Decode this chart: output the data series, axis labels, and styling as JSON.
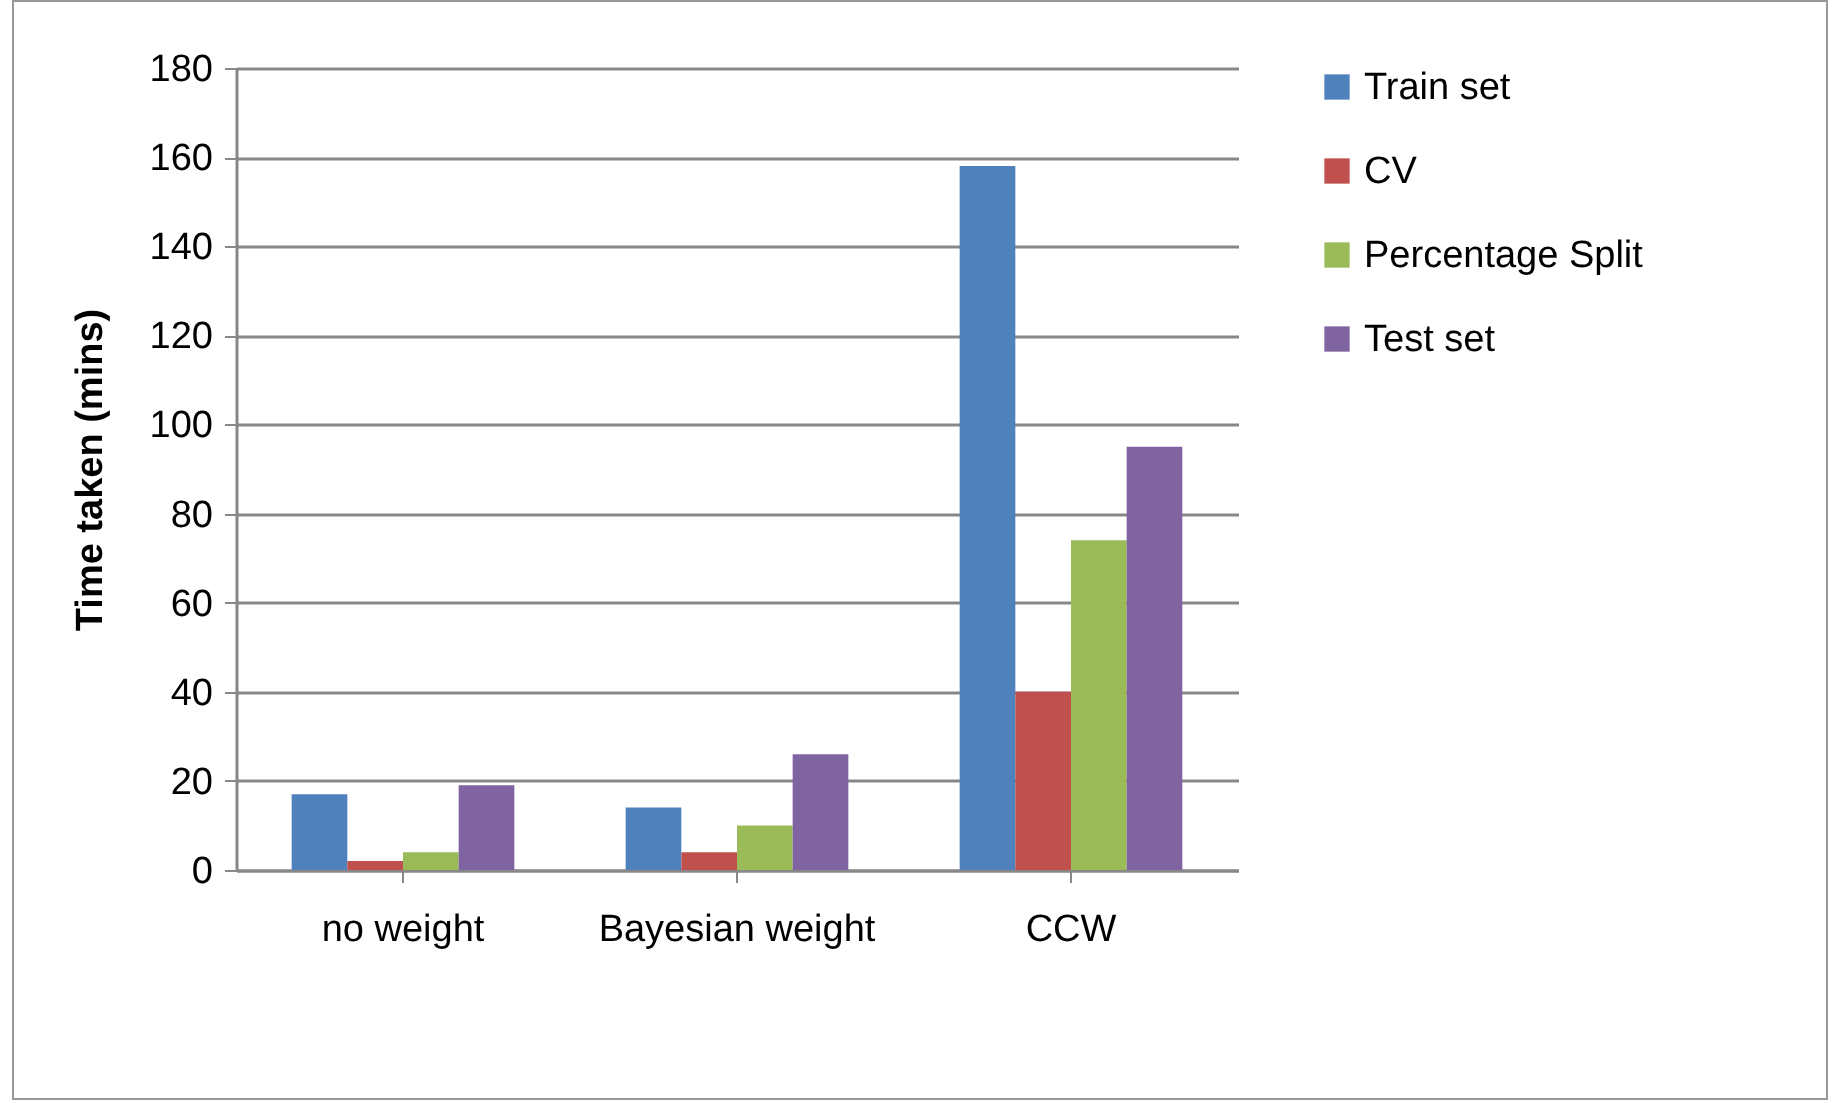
{
  "chart_data": {
    "type": "bar",
    "ylabel": "Time taken (mins)",
    "categories": [
      "no weight",
      "Bayesian weight",
      "CCW"
    ],
    "series": [
      {
        "name": "Train set",
        "color": "#4f81bd",
        "values": [
          17,
          14,
          158
        ]
      },
      {
        "name": "CV",
        "color": "#c0504d",
        "values": [
          2,
          4,
          40
        ]
      },
      {
        "name": "Percentage Split",
        "color": "#9bbb59",
        "values": [
          4,
          10,
          74
        ]
      },
      {
        "name": "Test set",
        "color": "#8064a2",
        "values": [
          19,
          26,
          95
        ]
      }
    ],
    "ylim": [
      0,
      180
    ],
    "yticks": [
      0,
      20,
      40,
      60,
      80,
      100,
      120,
      140,
      160,
      180
    ],
    "grid": "y",
    "legend": "right"
  }
}
